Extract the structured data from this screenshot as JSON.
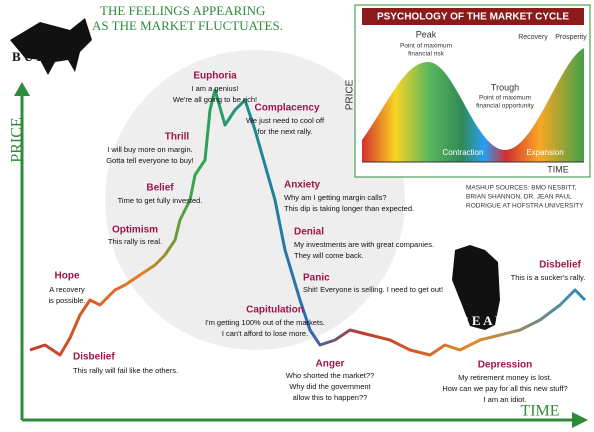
{
  "header": {
    "line1": "THE FEELINGS APPEARING",
    "line2": "AS THE MARKET FLUCTUATES."
  },
  "bull": "B U L L",
  "bear": "B E A R",
  "axis": {
    "y": "PRICE",
    "x": "TIME"
  },
  "stages": [
    {
      "title": "Disbelief",
      "lines": [
        "This rally will fail like the others."
      ]
    },
    {
      "title": "Hope",
      "lines": [
        "A recovery",
        "is possible."
      ]
    },
    {
      "title": "Optimism",
      "lines": [
        "This rally is real."
      ]
    },
    {
      "title": "Belief",
      "lines": [
        "Time to get fully invested."
      ]
    },
    {
      "title": "Thrill",
      "lines": [
        "I will buy more on margin.",
        "Gotta tell everyone to buy!"
      ]
    },
    {
      "title": "Euphoria",
      "lines": [
        "I am a genius!",
        "We're all going to be rich!"
      ]
    },
    {
      "title": "Complacency",
      "lines": [
        "We just need to cool off",
        "for the next rally."
      ]
    },
    {
      "title": "Anxiety",
      "lines": [
        "Why am I getting margin calls?",
        "This dip is taking longer than expected."
      ]
    },
    {
      "title": "Denial",
      "lines": [
        "My investments are with great companies.",
        "They will come back."
      ]
    },
    {
      "title": "Panic",
      "lines": [
        "Shit! Everyone is selling. I need to get out!"
      ]
    },
    {
      "title": "Capitulation",
      "lines": [
        "I'm getting 100% out of the markets.",
        "I can't afford to lose more."
      ]
    },
    {
      "title": "Anger",
      "lines": [
        "Who shorted the market??",
        "Why did the government",
        "allow this to happen??"
      ]
    },
    {
      "title": "Depression",
      "lines": [
        "My retirement money is lost.",
        "How can we pay for all this new stuff?",
        "I am an idiot."
      ]
    },
    {
      "title": "Disbelief",
      "lines": [
        "This is a sucker's rally."
      ]
    }
  ],
  "inset": {
    "title": "PSYCHOLOGY OF  THE MARKET CYCLE",
    "peak": "Peak",
    "peak_note": [
      "Point of maximum",
      "financial risk"
    ],
    "trough": "Trough",
    "trough_note": [
      "Point of maximum",
      "financial opportunity"
    ],
    "recovery": "Recovery",
    "prosperity": "Prosperity",
    "contraction": "Contraction",
    "expansion": "Expansion",
    "y": "PRICE",
    "x": "TIME"
  },
  "sources": [
    "MASHUP SOURCES: BMO NESBITT,",
    "BRIAN SHANNON, DR. JEAN PAUL",
    "RODRIGUE AT HOFSTRA UNIVERSITY"
  ]
}
